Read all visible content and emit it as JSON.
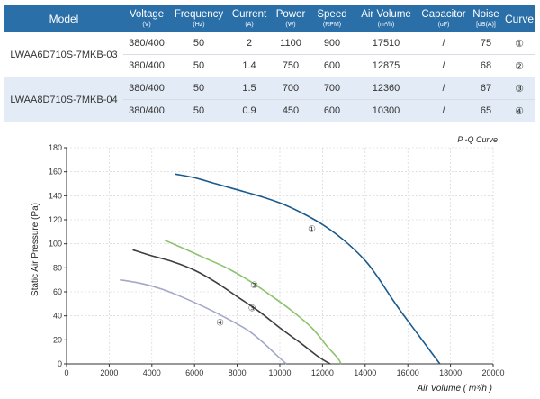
{
  "table": {
    "headers": [
      {
        "name": "Model",
        "unit": ""
      },
      {
        "name": "Voltage",
        "unit": "(V)"
      },
      {
        "name": "Frequency",
        "unit": "(Hz)"
      },
      {
        "name": "Current",
        "unit": "(A)"
      },
      {
        "name": "Power",
        "unit": "(W)"
      },
      {
        "name": "Speed",
        "unit": "(RPM)"
      },
      {
        "name": "Air Volume",
        "unit": "(m³/h)"
      },
      {
        "name": "Capacitor",
        "unit": "(uF)"
      },
      {
        "name": "Noise",
        "unit": "[dB(A)]"
      },
      {
        "name": "Curve",
        "unit": ""
      }
    ],
    "groups": [
      {
        "model": "LWAA6D710S-7MKB-03",
        "rows": [
          {
            "voltage": "380/400",
            "frequency": "50",
            "current": "2",
            "power": "1100",
            "speed": "900",
            "air_volume": "17510",
            "capacitor": "/",
            "noise": "75",
            "curve": "①"
          },
          {
            "voltage": "380/400",
            "frequency": "50",
            "current": "1.4",
            "power": "750",
            "speed": "600",
            "air_volume": "12875",
            "capacitor": "/",
            "noise": "68",
            "curve": "②"
          }
        ]
      },
      {
        "model": "LWAA8D710S-7MKB-04",
        "rows": [
          {
            "voltage": "380/400",
            "frequency": "50",
            "current": "1.5",
            "power": "700",
            "speed": "700",
            "air_volume": "12360",
            "capacitor": "/",
            "noise": "67",
            "curve": "③"
          },
          {
            "voltage": "380/400",
            "frequency": "50",
            "current": "0.9",
            "power": "450",
            "speed": "600",
            "air_volume": "10300",
            "capacitor": "/",
            "noise": "65",
            "curve": "④"
          }
        ]
      }
    ]
  },
  "chart_data": {
    "type": "line",
    "title": "P -Q Curve",
    "xlabel": "Air Volume ( m³/h )",
    "ylabel": "Static Air Pressure  (Pa)",
    "xlim": [
      0,
      20000
    ],
    "ylim": [
      0,
      180
    ],
    "xticks": [
      0,
      2000,
      4000,
      6000,
      8000,
      10000,
      12000,
      14000,
      16000,
      18000,
      20000
    ],
    "yticks": [
      0,
      20,
      40,
      60,
      80,
      100,
      120,
      140,
      160,
      180
    ],
    "grid": true,
    "series": [
      {
        "name": "①",
        "color": "#1a5a8c",
        "x": [
          5100,
          6000,
          7000,
          8000,
          9000,
          10000,
          11000,
          12000,
          13000,
          14000,
          14600,
          15500,
          16500,
          17500
        ],
        "y": [
          158,
          155,
          150,
          145,
          140,
          134,
          126,
          116,
          103,
          86,
          72,
          48,
          24,
          0
        ],
        "label_at": [
          11500,
          113
        ]
      },
      {
        "name": "②",
        "color": "#8dc26e",
        "x": [
          4600,
          5500,
          6500,
          7500,
          8500,
          9500,
          10500,
          11500,
          12200,
          12700,
          12875
        ],
        "y": [
          103,
          96,
          88,
          80,
          70,
          58,
          45,
          30,
          15,
          5,
          0
        ],
        "label_at": [
          8800,
          66
        ]
      },
      {
        "name": "③",
        "color": "#3d3d3d",
        "x": [
          3100,
          4000,
          5000,
          6000,
          7000,
          8000,
          9000,
          10000,
          11000,
          11800,
          12360
        ],
        "y": [
          95,
          90,
          85,
          78,
          68,
          56,
          44,
          30,
          17,
          6,
          0
        ],
        "label_at": [
          8700,
          47
        ]
      },
      {
        "name": "④",
        "color": "#a3a8c8",
        "x": [
          2500,
          3500,
          4500,
          5500,
          6500,
          7500,
          8500,
          9200,
          9800,
          10300
        ],
        "y": [
          70,
          67,
          62,
          55,
          47,
          38,
          28,
          18,
          8,
          0
        ],
        "label_at": [
          7200,
          35
        ]
      }
    ]
  }
}
